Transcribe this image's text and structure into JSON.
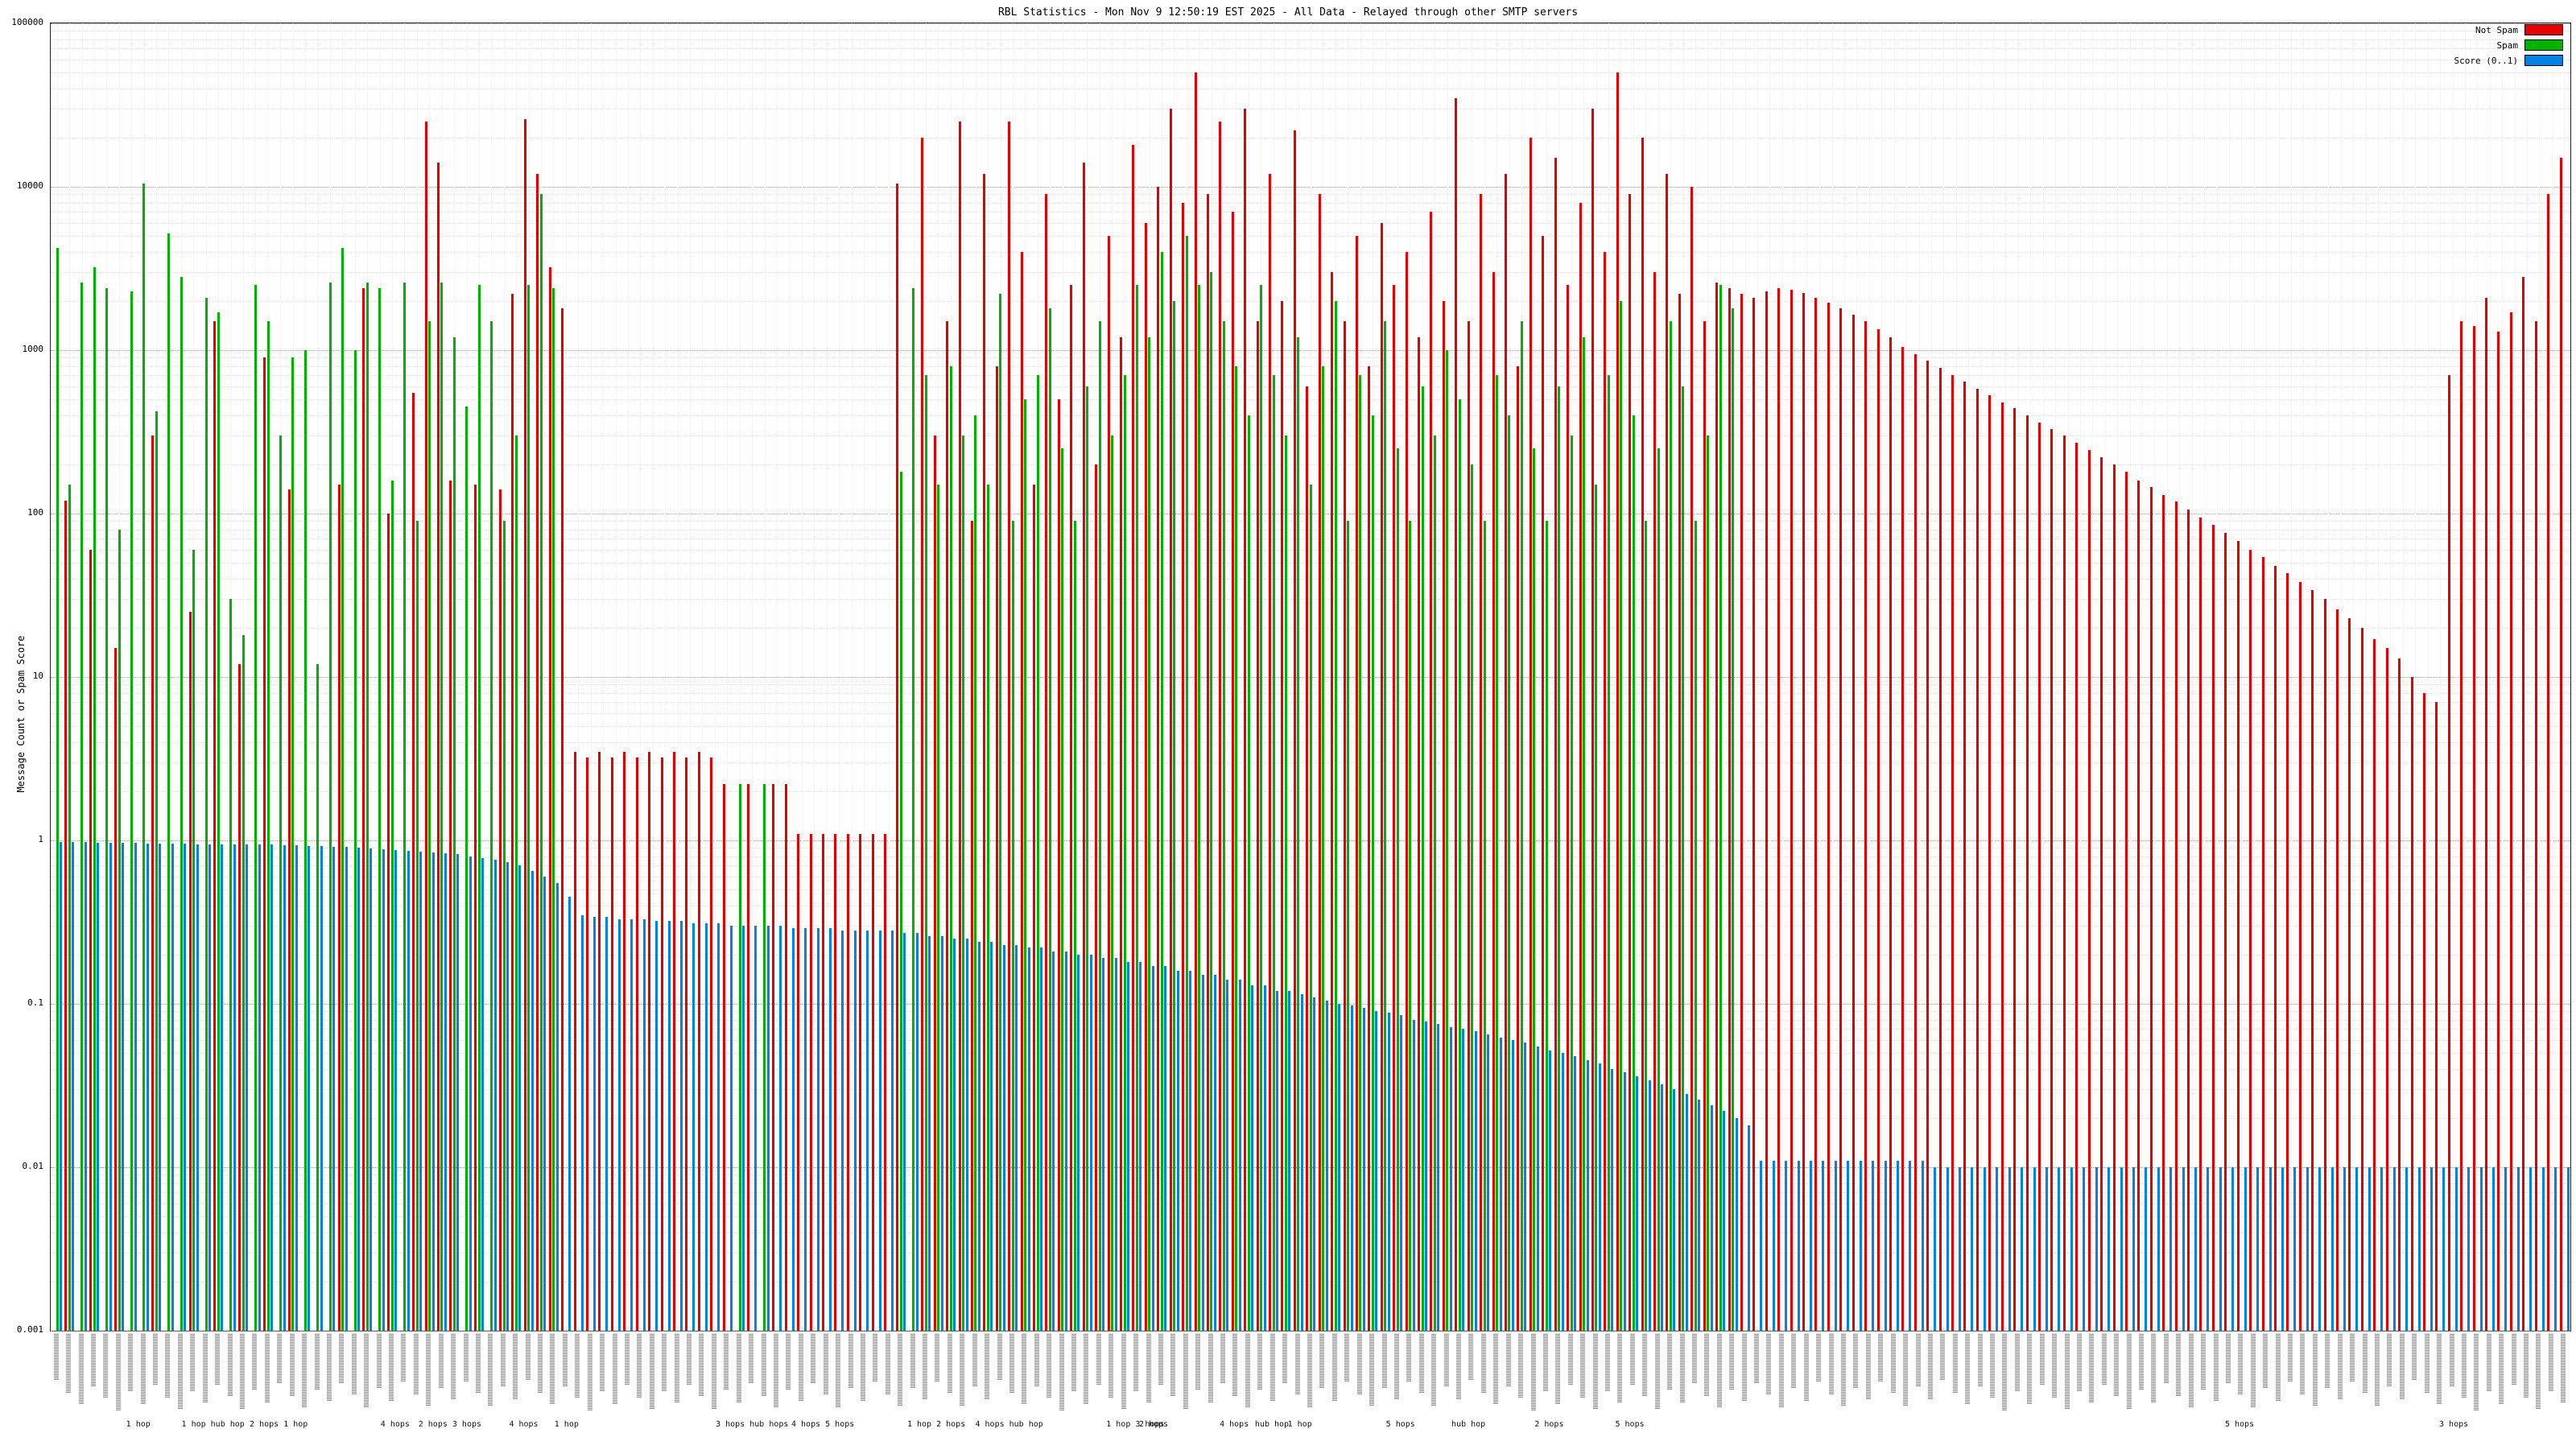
{
  "chart": {
    "title": "RBL Statistics - Mon Nov  9 12:50:19 EST 2025 - All Data - Relayed through other SMTP servers",
    "ylabel": "Message Count or Spam Score",
    "legend": [
      {
        "label": "Not Spam",
        "color": "#e80000"
      },
      {
        "label": "Spam",
        "color": "#00b300"
      },
      {
        "label": "Score (0..1)",
        "color": "#0082e6"
      }
    ]
  },
  "chart_data": {
    "type": "bar",
    "scale": "log",
    "ylim": [
      0.001,
      100000
    ],
    "ytick_labels": [
      "0.001",
      "0.01",
      "0.1",
      "1",
      "10",
      "100",
      "1000",
      "10000",
      "100000"
    ],
    "grid": true,
    "legend_position": "top-right",
    "series": [
      "Not Spam",
      "Spam",
      "Score (0..1)"
    ],
    "xtick_note": "per-host relay labels, rotated vertically, illegible at this resolution",
    "hop_labels": [
      {
        "text": "1 hop",
        "x": 0.036
      },
      {
        "text": "1 hop hub hop",
        "x": 0.058
      },
      {
        "text": "2 hops 1 hop",
        "x": 0.085
      },
      {
        "text": "4 hops",
        "x": 0.137
      },
      {
        "text": "2 hops 3 hops",
        "x": 0.152
      },
      {
        "text": "4 hops",
        "x": 0.188
      },
      {
        "text": "1 hop",
        "x": 0.206
      },
      {
        "text": "3 hops hub hops",
        "x": 0.27
      },
      {
        "text": "4 hops 5 hops",
        "x": 0.3
      },
      {
        "text": "1 hop 2 hops",
        "x": 0.346
      },
      {
        "text": "4 hops hub hop",
        "x": 0.373
      },
      {
        "text": "1 hop 3 hops",
        "x": 0.425
      },
      {
        "text": "2 hops",
        "x": 0.438
      },
      {
        "text": "4 hops",
        "x": 0.47
      },
      {
        "text": "hub hop",
        "x": 0.484
      },
      {
        "text": "1 hop",
        "x": 0.497
      },
      {
        "text": "5 hops",
        "x": 0.536
      },
      {
        "text": "hub hop",
        "x": 0.562
      },
      {
        "text": "2 hops",
        "x": 0.595
      },
      {
        "text": "5 hops",
        "x": 0.627
      },
      {
        "text": "5 hops",
        "x": 0.869
      },
      {
        "text": "3 hops",
        "x": 0.954
      }
    ],
    "bars_format": [
      "not_spam",
      "spam",
      "score"
    ],
    "bars": [
      [
        0,
        4200,
        0.98
      ],
      [
        120,
        150,
        0.98
      ],
      [
        0,
        2600,
        0.98
      ],
      [
        60,
        3200,
        0.97
      ],
      [
        0,
        2400,
        0.97
      ],
      [
        15,
        80,
        0.97
      ],
      [
        0,
        2300,
        0.97
      ],
      [
        0,
        10500,
        0.96
      ],
      [
        300,
        420,
        0.96
      ],
      [
        0,
        5200,
        0.96
      ],
      [
        0,
        2800,
        0.96
      ],
      [
        25,
        60,
        0.95
      ],
      [
        0,
        2100,
        0.95
      ],
      [
        1500,
        1700,
        0.95
      ],
      [
        0,
        30,
        0.95
      ],
      [
        12,
        18,
        0.94
      ],
      [
        0,
        2500,
        0.94
      ],
      [
        900,
        1500,
        0.94
      ],
      [
        0,
        300,
        0.93
      ],
      [
        140,
        900,
        0.93
      ],
      [
        0,
        1000,
        0.92
      ],
      [
        0,
        12,
        0.92
      ],
      [
        0,
        2600,
        0.91
      ],
      [
        150,
        4200,
        0.91
      ],
      [
        0,
        1000,
        0.9
      ],
      [
        2400,
        2600,
        0.89
      ],
      [
        0,
        2400,
        0.88
      ],
      [
        100,
        160,
        0.87
      ],
      [
        0,
        2600,
        0.86
      ],
      [
        550,
        90,
        0.85
      ],
      [
        25000,
        1500,
        0.84
      ],
      [
        14000,
        2600,
        0.83
      ],
      [
        160,
        1200,
        0.82
      ],
      [
        0,
        450,
        0.8
      ],
      [
        150,
        2500,
        0.78
      ],
      [
        0,
        1500,
        0.76
      ],
      [
        140,
        90,
        0.74
      ],
      [
        2200,
        300,
        0.7
      ],
      [
        26000,
        2500,
        0.65
      ],
      [
        12000,
        9000,
        0.6
      ],
      [
        3200,
        2400,
        0.55
      ],
      [
        1800,
        0,
        0.45
      ],
      [
        3.5,
        0,
        0.35
      ],
      [
        3.2,
        0,
        0.34
      ],
      [
        3.5,
        0,
        0.34
      ],
      [
        3.2,
        0,
        0.33
      ],
      [
        3.5,
        0,
        0.33
      ],
      [
        3.2,
        0,
        0.33
      ],
      [
        3.5,
        0,
        0.32
      ],
      [
        3.2,
        0,
        0.32
      ],
      [
        3.5,
        0,
        0.32
      ],
      [
        3.2,
        0,
        0.31
      ],
      [
        3.5,
        0,
        0.31
      ],
      [
        3.2,
        0,
        0.31
      ],
      [
        2.2,
        0,
        0.3
      ],
      [
        0,
        2.2,
        0.3
      ],
      [
        2.2,
        0,
        0.3
      ],
      [
        0,
        2.2,
        0.3
      ],
      [
        2.2,
        0,
        0.3
      ],
      [
        2.2,
        0,
        0.29
      ],
      [
        1.1,
        0,
        0.29
      ],
      [
        1.1,
        0,
        0.29
      ],
      [
        1.1,
        0,
        0.29
      ],
      [
        1.1,
        0,
        0.28
      ],
      [
        1.1,
        0,
        0.28
      ],
      [
        1.1,
        0,
        0.28
      ],
      [
        1.1,
        0,
        0.28
      ],
      [
        1.1,
        0,
        0.28
      ],
      [
        10500,
        180,
        0.27
      ],
      [
        0,
        2400,
        0.27
      ],
      [
        20000,
        700,
        0.26
      ],
      [
        300,
        150,
        0.26
      ],
      [
        1500,
        800,
        0.25
      ],
      [
        25000,
        300,
        0.25
      ],
      [
        90,
        400,
        0.24
      ],
      [
        12000,
        150,
        0.24
      ],
      [
        800,
        2200,
        0.23
      ],
      [
        25000,
        90,
        0.23
      ],
      [
        4000,
        500,
        0.22
      ],
      [
        150,
        700,
        0.22
      ],
      [
        9000,
        1800,
        0.21
      ],
      [
        500,
        250,
        0.21
      ],
      [
        2500,
        90,
        0.2
      ],
      [
        14000,
        600,
        0.2
      ],
      [
        200,
        1500,
        0.19
      ],
      [
        5000,
        300,
        0.19
      ],
      [
        1200,
        700,
        0.18
      ],
      [
        18000,
        2500,
        0.18
      ],
      [
        6000,
        1200,
        0.17
      ],
      [
        10000,
        4000,
        0.17
      ],
      [
        30000,
        2000,
        0.16
      ],
      [
        8000,
        5000,
        0.16
      ],
      [
        50000,
        2500,
        0.15
      ],
      [
        9000,
        3000,
        0.15
      ],
      [
        25000,
        1500,
        0.14
      ],
      [
        7000,
        800,
        0.14
      ],
      [
        30000,
        400,
        0.13
      ],
      [
        1500,
        2500,
        0.13
      ],
      [
        12000,
        700,
        0.12
      ],
      [
        2000,
        300,
        0.12
      ],
      [
        22000,
        1200,
        0.115
      ],
      [
        600,
        150,
        0.11
      ],
      [
        9000,
        800,
        0.105
      ],
      [
        3000,
        2000,
        0.1
      ],
      [
        1500,
        90,
        0.098
      ],
      [
        5000,
        700,
        0.095
      ],
      [
        800,
        400,
        0.09
      ],
      [
        6000,
        1500,
        0.088
      ],
      [
        2500,
        250,
        0.085
      ],
      [
        4000,
        90,
        0.08
      ],
      [
        1200,
        600,
        0.078
      ],
      [
        7000,
        300,
        0.075
      ],
      [
        2000,
        1000,
        0.072
      ],
      [
        35000,
        500,
        0.07
      ],
      [
        1500,
        200,
        0.068
      ],
      [
        9000,
        90,
        0.065
      ],
      [
        3000,
        700,
        0.062
      ],
      [
        12000,
        400,
        0.06
      ],
      [
        800,
        1500,
        0.058
      ],
      [
        20000,
        250,
        0.055
      ],
      [
        5000,
        90,
        0.052
      ],
      [
        15000,
        600,
        0.05
      ],
      [
        2500,
        300,
        0.048
      ],
      [
        8000,
        1200,
        0.045
      ],
      [
        30000,
        150,
        0.043
      ],
      [
        4000,
        700,
        0.04
      ],
      [
        50000,
        2000,
        0.038
      ],
      [
        9000,
        400,
        0.036
      ],
      [
        20000,
        90,
        0.034
      ],
      [
        3000,
        250,
        0.032
      ],
      [
        12000,
        1500,
        0.03
      ],
      [
        2200,
        600,
        0.028
      ],
      [
        10000,
        90,
        0.026
      ],
      [
        1500,
        300,
        0.024
      ],
      [
        2600,
        2500,
        0.022
      ],
      [
        2400,
        1800,
        0.02
      ],
      [
        2200,
        0,
        0.018
      ],
      [
        2100,
        0,
        0.011
      ],
      [
        2300,
        0,
        0.011
      ],
      [
        2400,
        0,
        0.011
      ],
      [
        2350,
        0,
        0.011
      ],
      [
        2250,
        0,
        0.011
      ],
      [
        2100,
        0,
        0.011
      ],
      [
        1950,
        0,
        0.011
      ],
      [
        1800,
        0,
        0.011
      ],
      [
        1650,
        0,
        0.011
      ],
      [
        1500,
        0,
        0.011
      ],
      [
        1350,
        0,
        0.011
      ],
      [
        1200,
        0,
        0.011
      ],
      [
        1050,
        0,
        0.011
      ],
      [
        950,
        0,
        0.011
      ],
      [
        860,
        0,
        0.01
      ],
      [
        780,
        0,
        0.01
      ],
      [
        700,
        0,
        0.01
      ],
      [
        640,
        0,
        0.01
      ],
      [
        580,
        0,
        0.01
      ],
      [
        530,
        0,
        0.01
      ],
      [
        480,
        0,
        0.01
      ],
      [
        440,
        0,
        0.01
      ],
      [
        400,
        0,
        0.01
      ],
      [
        360,
        0,
        0.01
      ],
      [
        330,
        0,
        0.01
      ],
      [
        300,
        0,
        0.01
      ],
      [
        270,
        0,
        0.01
      ],
      [
        245,
        0,
        0.01
      ],
      [
        220,
        0,
        0.01
      ],
      [
        200,
        0,
        0.01
      ],
      [
        180,
        0,
        0.01
      ],
      [
        160,
        0,
        0.01
      ],
      [
        145,
        0,
        0.01
      ],
      [
        130,
        0,
        0.01
      ],
      [
        118,
        0,
        0.01
      ],
      [
        106,
        0,
        0.01
      ],
      [
        95,
        0,
        0.01
      ],
      [
        85,
        0,
        0.01
      ],
      [
        76,
        0,
        0.01
      ],
      [
        68,
        0,
        0.01
      ],
      [
        60,
        0,
        0.01
      ],
      [
        54,
        0,
        0.01
      ],
      [
        48,
        0,
        0.01
      ],
      [
        43,
        0,
        0.01
      ],
      [
        38,
        0,
        0.01
      ],
      [
        34,
        0,
        0.01
      ],
      [
        30,
        0,
        0.01
      ],
      [
        26,
        0,
        0.01
      ],
      [
        23,
        0,
        0.01
      ],
      [
        20,
        0,
        0.01
      ],
      [
        17,
        0,
        0.01
      ],
      [
        15,
        0,
        0.01
      ],
      [
        13,
        0,
        0.01
      ],
      [
        10,
        0,
        0.01
      ],
      [
        8,
        0,
        0.01
      ],
      [
        7,
        0,
        0.01
      ],
      [
        700,
        0,
        0.01
      ],
      [
        1500,
        0,
        0.01
      ],
      [
        1400,
        0,
        0.01
      ],
      [
        2100,
        0,
        0.01
      ],
      [
        1300,
        0,
        0.01
      ],
      [
        1700,
        0,
        0.01
      ],
      [
        2800,
        0,
        0.01
      ],
      [
        1500,
        0,
        0.01
      ],
      [
        9000,
        0,
        0.01
      ],
      [
        15000,
        0,
        0.01
      ]
    ]
  }
}
